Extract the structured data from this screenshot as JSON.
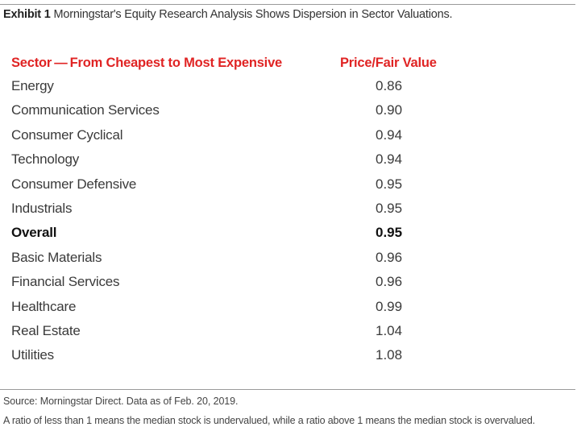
{
  "exhibit": {
    "label": "Exhibit 1",
    "title": "Morningstar's Equity Research Analysis Shows Dispersion in Sector Valuations."
  },
  "chart_data": {
    "type": "table",
    "columns": [
      "Sector — From Cheapest to Most Expensive",
      "Price/Fair Value"
    ],
    "rows": [
      {
        "sector": "Energy",
        "value": "0.86",
        "bold": false
      },
      {
        "sector": "Communication Services",
        "value": "0.90",
        "bold": false
      },
      {
        "sector": "Consumer Cyclical",
        "value": "0.94",
        "bold": false
      },
      {
        "sector": "Technology",
        "value": "0.94",
        "bold": false
      },
      {
        "sector": "Consumer Defensive",
        "value": "0.95",
        "bold": false
      },
      {
        "sector": "Industrials",
        "value": "0.95",
        "bold": false
      },
      {
        "sector": "Overall",
        "value": "0.95",
        "bold": true
      },
      {
        "sector": "Basic Materials",
        "value": "0.96",
        "bold": false
      },
      {
        "sector": "Financial Services",
        "value": "0.96",
        "bold": false
      },
      {
        "sector": "Healthcare",
        "value": "0.99",
        "bold": false
      },
      {
        "sector": "Real Estate",
        "value": "1.04",
        "bold": false
      },
      {
        "sector": "Utilities",
        "value": "1.08",
        "bold": false
      }
    ]
  },
  "footer": {
    "source": "Source: Morningstar Direct. Data as of Feb. 20, 2019.",
    "note": "A ratio of less than 1 means the median stock is undervalued, while a ratio above 1 means the median stock is overvalued."
  },
  "colors": {
    "header_red": "#e02424",
    "rule_gray": "#9a9a9a"
  }
}
